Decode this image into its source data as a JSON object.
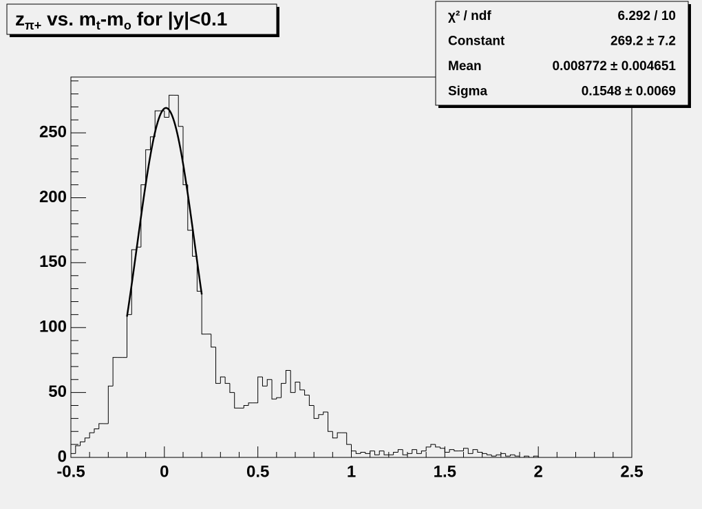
{
  "chart_data": {
    "type": "histogram",
    "title": [
      {
        "text": "z"
      },
      {
        "text": "π+",
        "sub": true
      },
      {
        "text": " vs. m"
      },
      {
        "text": "t",
        "sub": true
      },
      {
        "text": "-m"
      },
      {
        "text": "o",
        "sub": true
      },
      {
        "text": " for |y|<0.1"
      }
    ],
    "bins": [
      -0.5,
      -0.475,
      -0.45,
      -0.425,
      -0.4,
      -0.375,
      -0.35,
      -0.325,
      -0.3,
      -0.275,
      -0.25,
      -0.225,
      -0.2,
      -0.175,
      -0.15,
      -0.125,
      -0.1,
      -0.075,
      -0.05,
      -0.025,
      0,
      0.025,
      0.05,
      0.075,
      0.1,
      0.125,
      0.15,
      0.175,
      0.2,
      0.225,
      0.25,
      0.275,
      0.3,
      0.325,
      0.35,
      0.375,
      0.4,
      0.425,
      0.45,
      0.475,
      0.5,
      0.525,
      0.55,
      0.575,
      0.6,
      0.625,
      0.65,
      0.675,
      0.7,
      0.725,
      0.75,
      0.775,
      0.8,
      0.825,
      0.85,
      0.875,
      0.9,
      0.925,
      0.95,
      0.975,
      1,
      1.025,
      1.05,
      1.075,
      1.1,
      1.125,
      1.15,
      1.175,
      1.2,
      1.225,
      1.25,
      1.275,
      1.3,
      1.325,
      1.35,
      1.375,
      1.4,
      1.425,
      1.45,
      1.475,
      1.5,
      1.525,
      1.55,
      1.575,
      1.6,
      1.625,
      1.65,
      1.675,
      1.7,
      1.725,
      1.75,
      1.775,
      1.8,
      1.825,
      1.85,
      1.875,
      1.9,
      1.925,
      1.95,
      1.975,
      2,
      2.025,
      2.05,
      2.075,
      2.1,
      2.125,
      2.15,
      2.175,
      2.2,
      2.225,
      2.25,
      2.275,
      2.3,
      2.325,
      2.35,
      2.375,
      2.4,
      2.425,
      2.45,
      2.475,
      2.5
    ],
    "values": [
      3,
      9,
      12,
      15,
      19,
      22,
      26,
      26,
      55,
      77,
      77,
      77,
      110,
      160,
      162,
      210,
      237,
      247,
      267,
      267,
      262,
      279,
      279,
      255,
      210,
      175,
      155,
      128,
      95,
      95,
      85,
      57,
      62,
      57,
      50,
      38,
      38,
      40,
      42,
      42,
      62,
      55,
      60,
      45,
      46,
      57,
      67,
      50,
      58,
      52,
      48,
      40,
      30,
      33,
      35,
      20,
      15,
      19,
      19,
      10,
      5,
      3,
      4,
      3,
      5,
      2,
      5,
      2,
      2,
      4,
      6,
      2,
      3,
      6,
      3,
      5,
      8,
      10,
      8,
      7,
      4,
      6,
      5,
      5,
      7,
      3,
      6,
      4,
      3,
      2,
      1,
      2,
      3,
      1,
      2,
      1,
      0,
      1,
      0,
      1,
      0,
      0,
      0,
      0,
      0,
      0,
      0,
      0,
      0,
      0,
      0,
      0,
      0,
      0,
      0,
      0,
      0,
      0,
      0,
      0
    ],
    "color": "#000000",
    "xlim": [
      -0.5,
      2.5
    ],
    "xticks": [
      -0.5,
      0,
      0.5,
      1,
      1.5,
      2,
      2.5
    ],
    "ylim": [
      0,
      293
    ],
    "yticks": [
      0,
      50,
      100,
      150,
      200,
      250
    ],
    "fit": {
      "constant": 269.2,
      "mean": 0.008772,
      "sigma": 0.1548,
      "range": [
        -0.2,
        0.2
      ]
    },
    "stats": [
      [
        "χ² / ndf",
        "6.292 / 10"
      ],
      [
        "Constant",
        "269.2 ± 7.2"
      ],
      [
        "Mean",
        "0.008772 ± 0.004651"
      ],
      [
        "Sigma",
        "0.1548 ± 0.0069"
      ]
    ]
  }
}
